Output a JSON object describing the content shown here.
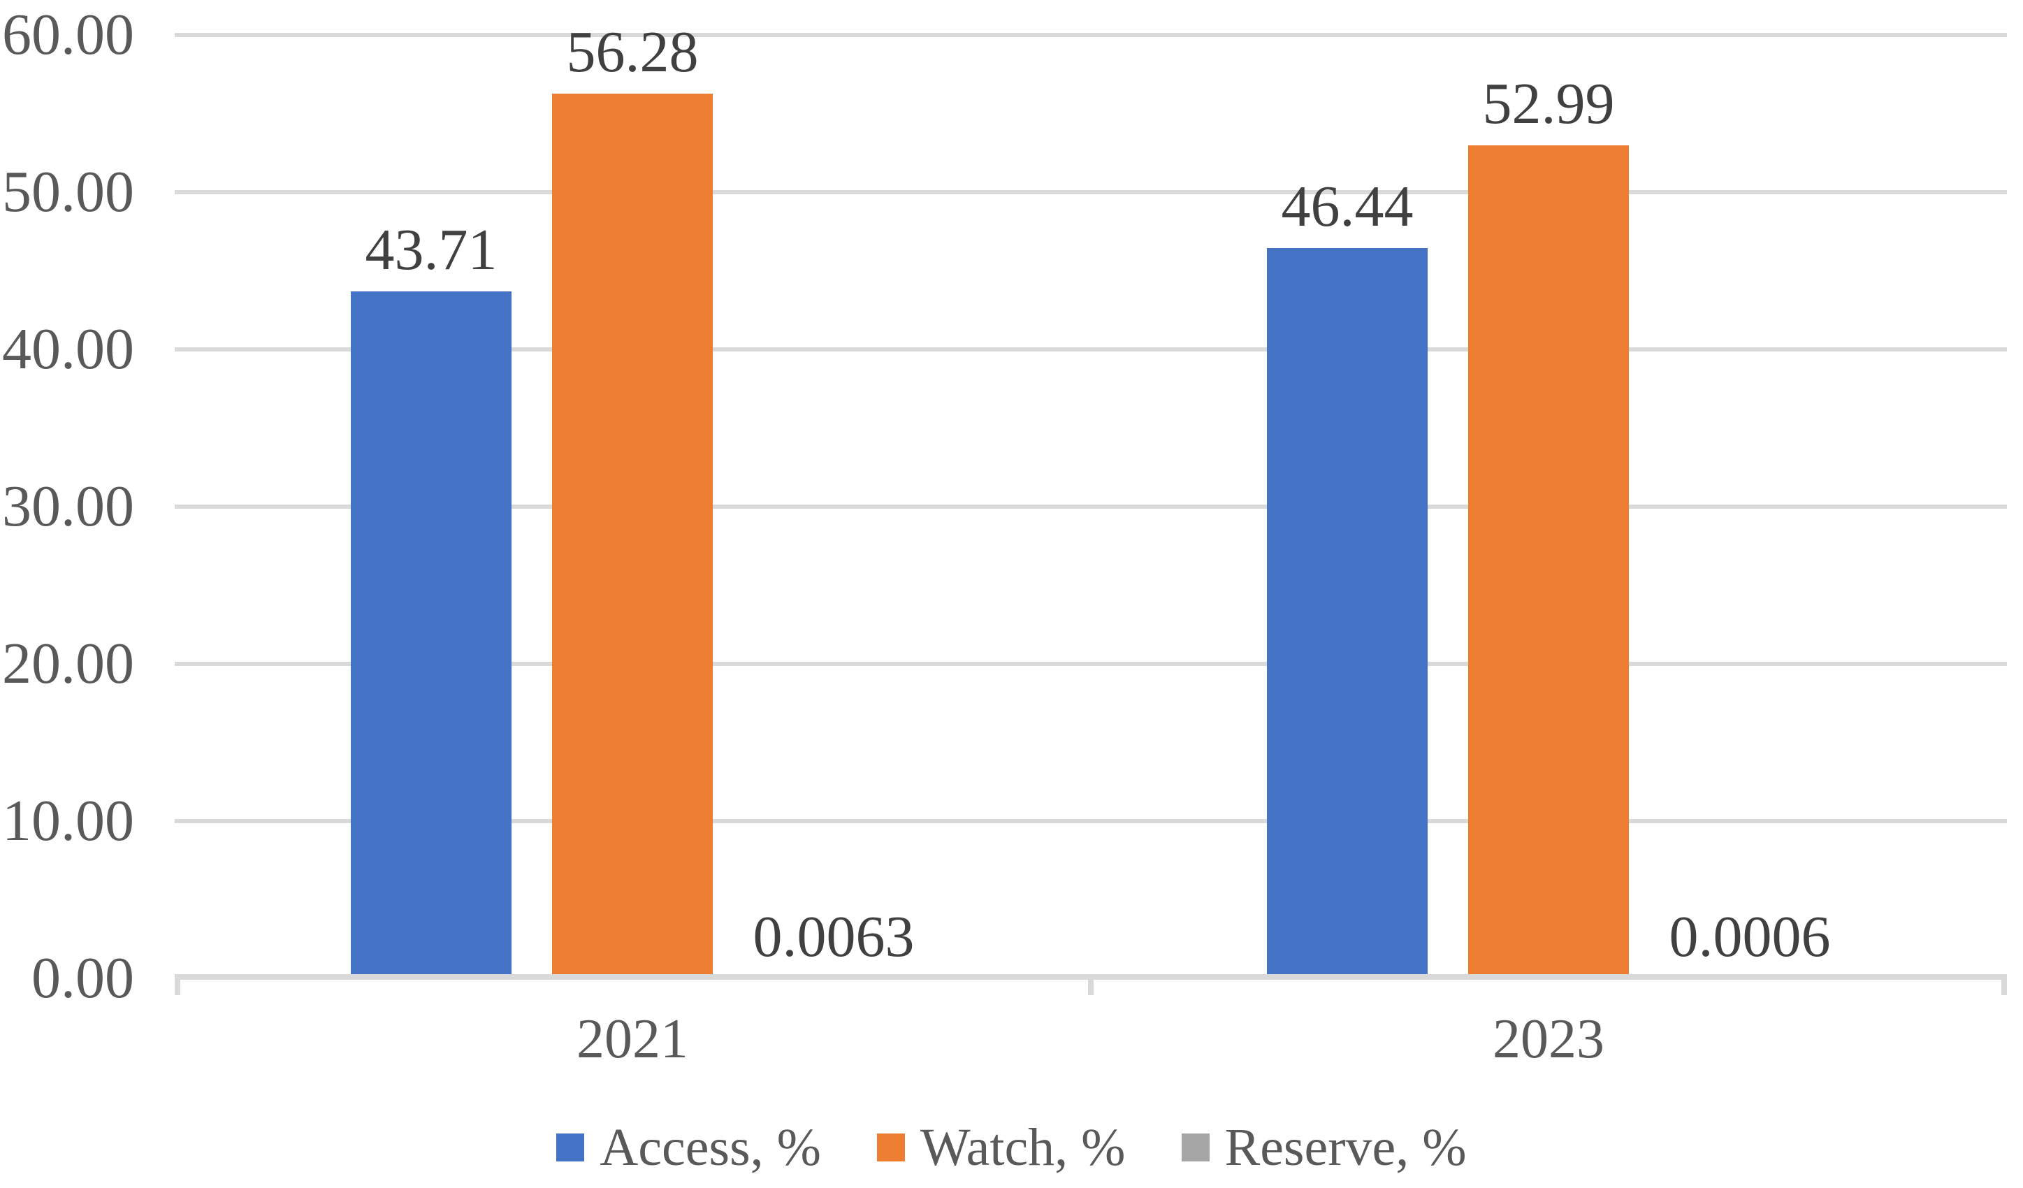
{
  "chart_data": {
    "type": "bar",
    "title": "",
    "categories": [
      "2021",
      "2023"
    ],
    "series": [
      {
        "name": "Access, %",
        "color": "#4472C4",
        "values": [
          43.71,
          46.44
        ],
        "data_labels": [
          "43.71",
          "46.44"
        ]
      },
      {
        "name": "Watch, %",
        "color": "#ED7D31",
        "values": [
          56.28,
          52.99
        ],
        "data_labels": [
          "56.28",
          "52.99"
        ]
      },
      {
        "name": "Reserve, %",
        "color": "#A5A5A5",
        "values": [
          0.0063,
          0.0006
        ],
        "data_labels": [
          "0.0063",
          "0.0006"
        ]
      }
    ],
    "y_axis": {
      "min": 0,
      "max": 60,
      "step": 10,
      "tick_labels": [
        "60.00",
        "50.00",
        "40.00",
        "30.00",
        "20.00",
        "10.00",
        "0.00"
      ]
    },
    "x_axis": {
      "tick_labels": [
        "2021",
        "2023"
      ]
    },
    "grid": true,
    "legend": {
      "position": "bottom"
    },
    "colors": {
      "gridline": "#D9D9D9",
      "axis_line": "#D9D9D9",
      "axis_text": "#595959",
      "data_label_text": "#404040",
      "background": "#FFFFFF"
    }
  }
}
